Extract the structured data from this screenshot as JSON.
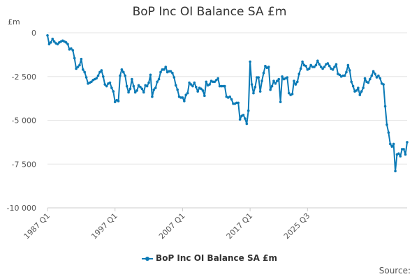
{
  "chart_data": {
    "type": "line",
    "title": "BoP Inc OI Balance SA £m",
    "ylabel": "£m",
    "xlabel": "",
    "ylim": [
      -10000,
      0
    ],
    "yticks": [
      0,
      -2500,
      -5000,
      -7500,
      -10000
    ],
    "ytick_labels": [
      "0",
      "-2 500",
      "-5 000",
      "-7 500",
      "-10 000"
    ],
    "xtick_labels": [
      "1987 Q1",
      "1997 Q1",
      "2007 Q1",
      "2017 Q1",
      "2025 Q3"
    ],
    "grid": "horizontal",
    "legend_position": "bottom",
    "color": "#0b7ab6",
    "series": [
      {
        "name": "BoP Inc OI Balance SA £m",
        "start": "1987 Q1",
        "values": [
          -150,
          -650,
          -550,
          -350,
          -500,
          -600,
          -650,
          -550,
          -500,
          -450,
          -500,
          -550,
          -650,
          -950,
          -900,
          -1000,
          -1450,
          -2050,
          -1950,
          -1850,
          -1500,
          -2100,
          -2250,
          -2550,
          -2900,
          -2850,
          -2800,
          -2700,
          -2650,
          -2600,
          -2450,
          -2250,
          -2150,
          -2500,
          -2950,
          -3050,
          -2900,
          -2850,
          -3150,
          -3350,
          -3950,
          -3850,
          -3900,
          -2450,
          -2100,
          -2250,
          -2450,
          -3050,
          -3400,
          -3200,
          -2650,
          -3050,
          -3400,
          -3300,
          -3000,
          -3100,
          -3200,
          -3400,
          -3000,
          -3050,
          -2850,
          -2400,
          -3650,
          -3250,
          -3150,
          -2800,
          -2650,
          -2250,
          -2100,
          -2100,
          -1950,
          -2250,
          -2200,
          -2200,
          -2300,
          -2550,
          -3000,
          -3250,
          -3650,
          -3700,
          -3700,
          -3900,
          -3550,
          -3450,
          -2850,
          -2950,
          -3050,
          -2850,
          -3100,
          -3350,
          -3150,
          -3200,
          -3300,
          -3600,
          -2800,
          -3000,
          -2950,
          -2750,
          -2800,
          -2800,
          -2700,
          -2600,
          -3050,
          -3050,
          -3050,
          -3050,
          -3650,
          -3700,
          -3650,
          -3800,
          -4050,
          -4050,
          -4000,
          -4000,
          -4950,
          -4750,
          -4700,
          -4900,
          -5200,
          -4450,
          -1650,
          -2950,
          -3450,
          -3100,
          -2550,
          -2550,
          -3350,
          -2750,
          -2300,
          -1900,
          -2000,
          -1950,
          -3250,
          -3050,
          -2750,
          -2900,
          -2750,
          -2650,
          -3950,
          -2500,
          -2650,
          -2600,
          -2550,
          -3450,
          -3550,
          -3500,
          -2750,
          -2950,
          -2800,
          -2350,
          -2050,
          -1650,
          -1850,
          -1900,
          -2100,
          -2050,
          -1850,
          -1950,
          -1950,
          -1850,
          -1600,
          -1800,
          -1950,
          -2050,
          -1950,
          -1800,
          -1750,
          -1900,
          -2050,
          -2100,
          -1950,
          -1800,
          -2350,
          -2400,
          -2500,
          -2450,
          -2450,
          -2250,
          -1850,
          -2150,
          -2800,
          -3050,
          -3350,
          -3300,
          -3150,
          -3550,
          -3350,
          -3150,
          -2600,
          -2800,
          -2850,
          -2650,
          -2450,
          -2200,
          -2350,
          -2550,
          -2450,
          -2600,
          -2900,
          -2950,
          -4200,
          -5250,
          -5700,
          -6350,
          -6500,
          -6350,
          -7900,
          -6950,
          -6900,
          -7050,
          -6650,
          -6650,
          -6950,
          -6250
        ]
      }
    ]
  },
  "source_label": "Source:"
}
